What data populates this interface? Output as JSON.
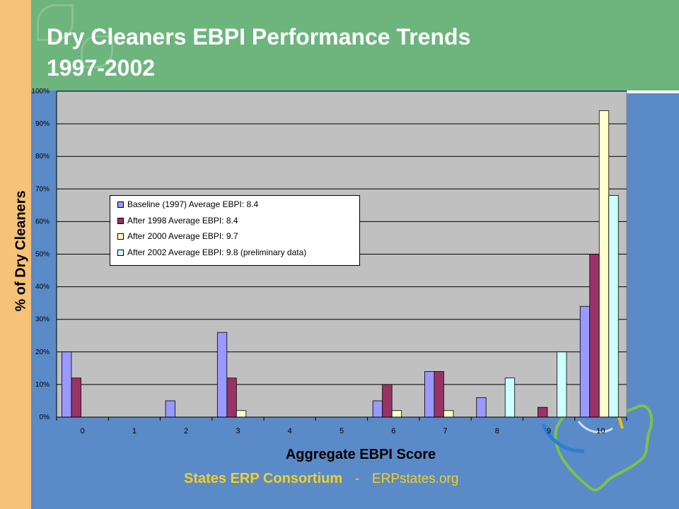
{
  "slide": {
    "title_line1": "Dry Cleaners EBPI Performance Trends",
    "title_line2": "1997-2002",
    "footer_org": "States ERP Consortium",
    "footer_sep": "-",
    "footer_url": "ERPstates.org"
  },
  "colors": {
    "background": "#5a8ac8",
    "header": "#6db57d",
    "left_band": "#f5c277",
    "footer_text": "#f5d020",
    "plot_area": "#c0c0c0"
  },
  "chart_data": {
    "type": "bar",
    "xlabel": "Aggregate EBPI Score",
    "ylabel": "% of Dry Cleaners",
    "categories": [
      "0",
      "1",
      "2",
      "3",
      "4",
      "5",
      "6",
      "7",
      "8",
      "9",
      "10"
    ],
    "y_ticks": [
      "0%",
      "10%",
      "20%",
      "30%",
      "40%",
      "50%",
      "60%",
      "70%",
      "80%",
      "90%",
      "100%"
    ],
    "ylim": [
      0,
      100
    ],
    "grid": true,
    "legend_position": "upper-left",
    "series": [
      {
        "name": "Baseline (1997) Average EBPI: 8.4",
        "color": "#9999ff",
        "values": [
          20,
          0,
          5,
          26,
          0,
          0,
          5,
          14,
          6,
          0,
          34
        ]
      },
      {
        "name": "After 1998 Average EBPI: 8.4",
        "color": "#993366",
        "values": [
          12,
          0,
          0,
          12,
          0,
          0,
          10,
          14,
          0,
          3,
          50
        ]
      },
      {
        "name": "After 2000 Average EBPI: 9.7",
        "color": "#ffffcc",
        "values": [
          0,
          0,
          0,
          2,
          0,
          0,
          2,
          2,
          0,
          0,
          94
        ]
      },
      {
        "name": "After 2002 Average EBPI: 9.8 (preliminary data)",
        "color": "#ccffff",
        "values": [
          0,
          0,
          0,
          0,
          0,
          0,
          0,
          0,
          12,
          20,
          68
        ]
      }
    ]
  }
}
